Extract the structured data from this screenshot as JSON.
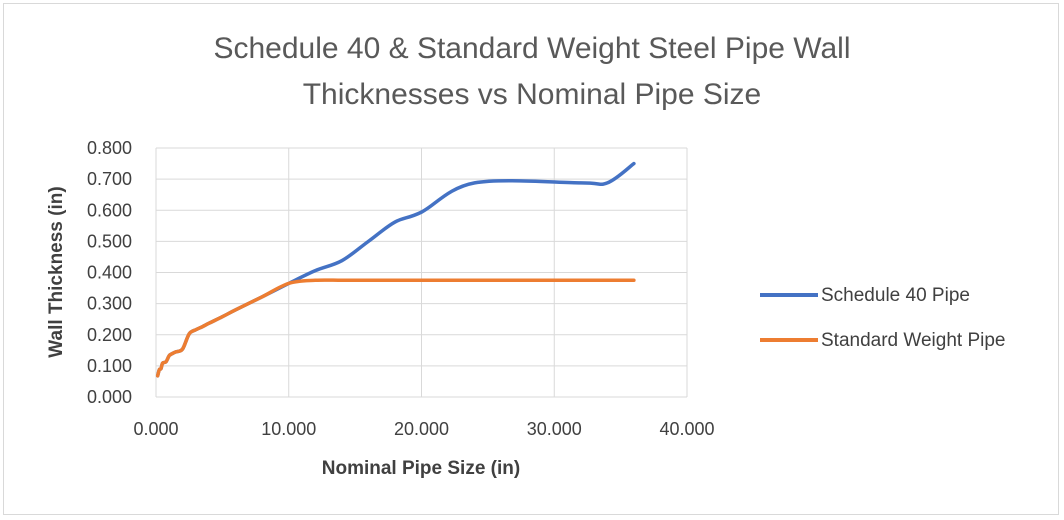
{
  "chart_data": {
    "type": "line",
    "title": "Schedule 40 & Standard Weight Steel Pipe Wall Thicknesses vs Nominal Pipe Size",
    "title_lines": [
      "Schedule 40 & Standard Weight Steel Pipe Wall",
      "Thicknesses vs Nominal Pipe Size"
    ],
    "xlabel": "Nominal Pipe Size (in)",
    "ylabel": "Wall Thickness (in)",
    "xlim": [
      0,
      40
    ],
    "ylim": [
      0,
      0.8
    ],
    "x_ticks": [
      "0.000",
      "10.000",
      "20.000",
      "30.000",
      "40.000"
    ],
    "y_ticks": [
      "0.000",
      "0.100",
      "0.200",
      "0.300",
      "0.400",
      "0.500",
      "0.600",
      "0.700",
      "0.800"
    ],
    "grid": true,
    "legend_position": "right",
    "series": [
      {
        "name": "Schedule 40 Pipe",
        "color": "#4472C4",
        "x": [
          0.125,
          0.25,
          0.375,
          0.5,
          0.75,
          1,
          1.25,
          1.5,
          2,
          2.5,
          3,
          3.5,
          4,
          5,
          6,
          8,
          10,
          12,
          14,
          16,
          18,
          20,
          24,
          32,
          34,
          36
        ],
        "y": [
          0.068,
          0.088,
          0.091,
          0.109,
          0.113,
          0.133,
          0.14,
          0.145,
          0.154,
          0.203,
          0.216,
          0.226,
          0.237,
          0.258,
          0.28,
          0.322,
          0.365,
          0.406,
          0.438,
          0.5,
          0.562,
          0.594,
          0.688,
          0.688,
          0.688,
          0.75
        ]
      },
      {
        "name": "Standard Weight Pipe",
        "color": "#ED7D31",
        "x": [
          0.125,
          0.25,
          0.375,
          0.5,
          0.75,
          1,
          1.25,
          1.5,
          2,
          2.5,
          3,
          3.5,
          4,
          5,
          6,
          8,
          10,
          12,
          14,
          16,
          18,
          20,
          24,
          32,
          34,
          36
        ],
        "y": [
          0.068,
          0.088,
          0.091,
          0.109,
          0.113,
          0.133,
          0.14,
          0.145,
          0.154,
          0.203,
          0.216,
          0.226,
          0.237,
          0.258,
          0.28,
          0.322,
          0.365,
          0.375,
          0.375,
          0.375,
          0.375,
          0.375,
          0.375,
          0.375,
          0.375,
          0.375
        ]
      }
    ]
  }
}
